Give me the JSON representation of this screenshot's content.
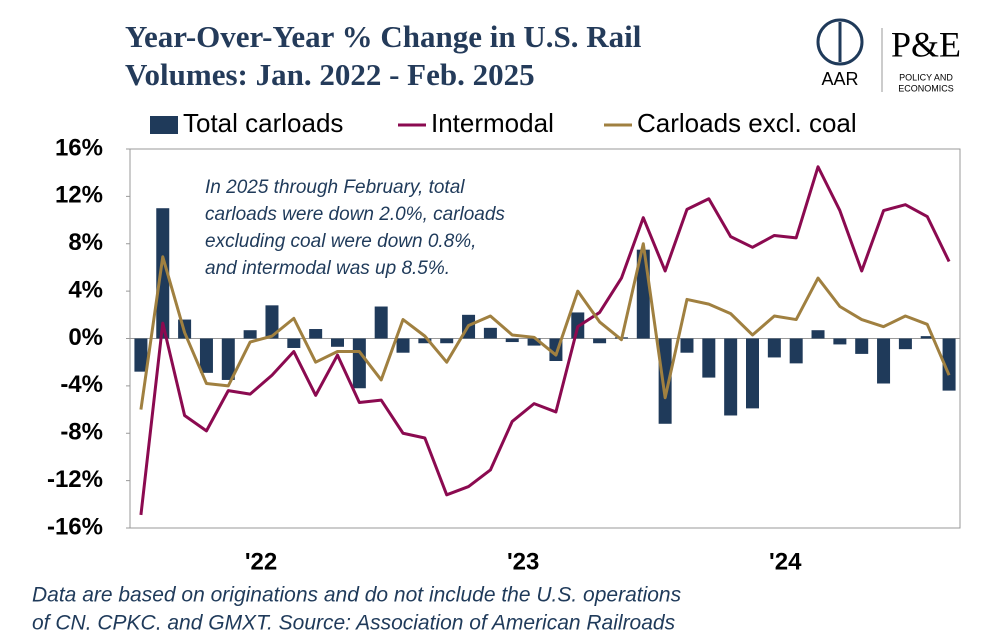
{
  "chart_data": {
    "type": "combo",
    "title_lines": [
      "Year-Over-Year % Change in U.S. Rail",
      "Volumes: Jan. 2022 - Feb. 2025"
    ],
    "logo": {
      "left": "AAR",
      "right": "P&E",
      "right_sub": [
        "POLICY AND",
        "ECONOMICS"
      ]
    },
    "annotation": [
      "In 2025 through February, total",
      "carloads were down 2.0%, carloads",
      "excluding coal were down 0.8%,",
      "and intermodal was up 8.5%."
    ],
    "footnote": [
      "Data are based on originations and do not include the U.S. operations",
      "of CN, CPKC, and GMXT. Source: Association of American Railroads"
    ],
    "categories": [
      null,
      null,
      null,
      null,
      null,
      "'22",
      null,
      null,
      null,
      null,
      null,
      null,
      null,
      null,
      null,
      null,
      null,
      "'23",
      null,
      null,
      null,
      null,
      null,
      null,
      null,
      null,
      null,
      null,
      null,
      "'24",
      null,
      null,
      null,
      null,
      null,
      null,
      null,
      null
    ],
    "ylim": [
      -16,
      16
    ],
    "yticks": [
      {
        "value": -16,
        "label": "-16%"
      },
      {
        "value": -12,
        "label": "-12%"
      },
      {
        "value": -8,
        "label": "-8%"
      },
      {
        "value": -4,
        "label": "-4%"
      },
      {
        "value": 0,
        "label": "0%"
      },
      {
        "value": 4,
        "label": "4%"
      },
      {
        "value": 8,
        "label": "8%"
      },
      {
        "value": 12,
        "label": "12%"
      },
      {
        "value": 16,
        "label": "16%"
      }
    ],
    "series": [
      {
        "name": "Total carloads",
        "type": "bar",
        "color": "#1f3a5a",
        "values": [
          -2.8,
          11.0,
          1.6,
          -2.9,
          -3.5,
          0.7,
          2.8,
          -0.8,
          0.8,
          -0.7,
          -4.2,
          2.7,
          -1.2,
          -0.4,
          -0.4,
          2.0,
          0.9,
          -0.3,
          -0.6,
          -1.9,
          2.2,
          -0.4,
          0.1,
          7.5,
          -7.2,
          -1.2,
          -3.3,
          -6.5,
          -5.9,
          -1.6,
          -2.1,
          0.7,
          -0.5,
          -1.3,
          -3.8,
          -0.9,
          0.2,
          -4.4
        ]
      },
      {
        "name": "Intermodal",
        "type": "line",
        "color": "#8b0a50",
        "values": [
          -14.9,
          1.3,
          -6.5,
          -7.8,
          -4.4,
          -4.7,
          -3.1,
          -1.1,
          -4.8,
          -1.4,
          -5.4,
          -5.2,
          -8.0,
          -8.4,
          -13.2,
          -12.5,
          -11.1,
          -7.0,
          -5.5,
          -6.2,
          1.0,
          2.2,
          5.1,
          10.2,
          5.7,
          10.9,
          11.8,
          8.6,
          7.7,
          8.7,
          8.5,
          14.5,
          10.8,
          5.7,
          10.8,
          11.3,
          10.3,
          6.5
        ]
      },
      {
        "name": "Carloads excl. coal",
        "type": "line",
        "color": "#a08040",
        "values": [
          -6.0,
          6.9,
          0.5,
          -3.8,
          -4.0,
          -0.3,
          0.2,
          1.7,
          -2.0,
          -1.1,
          -1.1,
          -3.5,
          1.6,
          0.2,
          -2.0,
          1.1,
          1.9,
          0.3,
          0.1,
          -1.4,
          4.0,
          1.4,
          -0.1,
          8.0,
          -5.0,
          3.3,
          2.9,
          2.1,
          0.3,
          1.9,
          1.6,
          5.1,
          2.7,
          1.6,
          1.0,
          1.9,
          1.2,
          -3.1
        ]
      }
    ]
  }
}
